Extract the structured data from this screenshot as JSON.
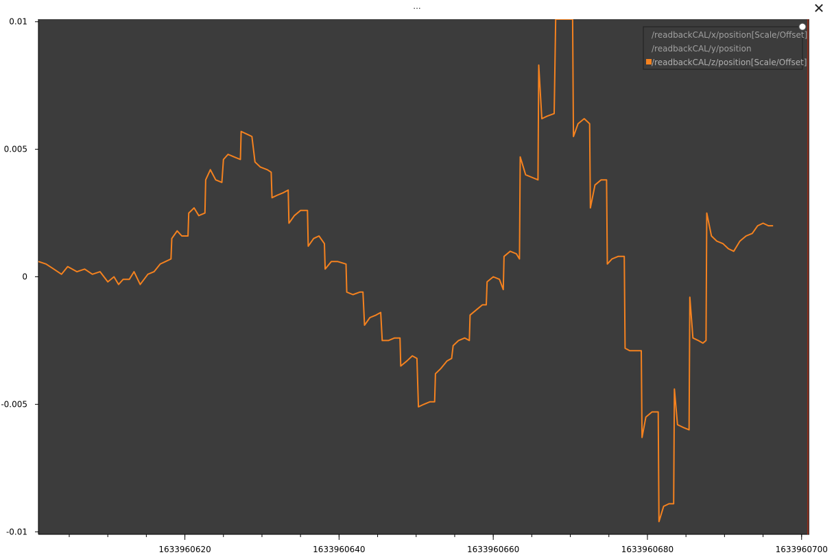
{
  "window": {
    "title": "...",
    "close_glyph": "✕"
  },
  "colors": {
    "canvas_bg": "#3c3c3c",
    "series_active": "#f5821f",
    "legend_inactive_text": "#a0a0a0",
    "legend_active_text": "#b0b0b0",
    "legend_bg": "#3c3c3c",
    "legend_border": "#1e1e1e",
    "marker_line": "#8b2d1c"
  },
  "chart_data": {
    "type": "line",
    "title": "",
    "xlabel": "",
    "ylabel": "",
    "xlim": [
      1633960601,
      1633960701
    ],
    "ylim": [
      -0.0101,
      0.0101
    ],
    "y_ticks": [
      {
        "value": 0.01,
        "label": "0.01"
      },
      {
        "value": 0.005,
        "label": "0.005"
      },
      {
        "value": 0,
        "label": "0"
      },
      {
        "value": -0.005,
        "label": "-0.005"
      },
      {
        "value": -0.01,
        "label": "-0.01"
      }
    ],
    "x_ticks": [
      {
        "value": 1633960620,
        "label": "1633960620"
      },
      {
        "value": 1633960640,
        "label": "1633960640"
      },
      {
        "value": 1633960660,
        "label": "1633960660"
      },
      {
        "value": 1633960680,
        "label": "1633960680"
      },
      {
        "value": 1633960700,
        "label": "1633960700"
      }
    ],
    "x_minor_step": 5,
    "grid": false,
    "legend_position": "top-right",
    "series": [
      {
        "name": "/readbackCAL/x/position[Scale/Offset]",
        "visible": false,
        "points": []
      },
      {
        "name": "/readbackCAL/y/position",
        "visible": false,
        "points": []
      },
      {
        "name": "/readbackCAL/z/position[Scale/Offset]",
        "visible": true,
        "points": [
          [
            1633960601.0,
            0.0006
          ],
          [
            1633960602.0,
            0.0005
          ],
          [
            1633960603.0,
            0.0003
          ],
          [
            1633960604.0,
            0.0001
          ],
          [
            1633960604.8,
            0.0004
          ],
          [
            1633960606.0,
            0.0002
          ],
          [
            1633960607.0,
            0.0003
          ],
          [
            1633960608.0,
            0.0001
          ],
          [
            1633960609.0,
            0.0002
          ],
          [
            1633960610.0,
            -0.0002
          ],
          [
            1633960610.8,
            0.0
          ],
          [
            1633960611.4,
            -0.0003
          ],
          [
            1633960612.0,
            -0.0001
          ],
          [
            1633960612.8,
            -0.0001
          ],
          [
            1633960613.4,
            0.0002
          ],
          [
            1633960614.2,
            -0.0003
          ],
          [
            1633960615.2,
            0.0001
          ],
          [
            1633960616.0,
            0.0002
          ],
          [
            1633960616.8,
            0.0005
          ],
          [
            1633960617.5,
            0.0006
          ],
          [
            1633960618.2,
            0.0007
          ],
          [
            1633960618.3,
            0.0015
          ],
          [
            1633960619.0,
            0.0018
          ],
          [
            1633960619.6,
            0.0016
          ],
          [
            1633960620.4,
            0.0016
          ],
          [
            1633960620.5,
            0.0025
          ],
          [
            1633960621.2,
            0.0027
          ],
          [
            1633960621.8,
            0.0024
          ],
          [
            1633960622.6,
            0.0025
          ],
          [
            1633960622.7,
            0.0038
          ],
          [
            1633960623.3,
            0.0042
          ],
          [
            1633960624.0,
            0.0038
          ],
          [
            1633960624.8,
            0.0037
          ],
          [
            1633960625.0,
            0.0046
          ],
          [
            1633960625.6,
            0.0048
          ],
          [
            1633960626.4,
            0.0047
          ],
          [
            1633960627.2,
            0.0046
          ],
          [
            1633960627.3,
            0.0057
          ],
          [
            1633960628.0,
            0.0056
          ],
          [
            1633960628.7,
            0.0055
          ],
          [
            1633960629.1,
            0.0045
          ],
          [
            1633960629.8,
            0.0043
          ],
          [
            1633960630.7,
            0.0042
          ],
          [
            1633960631.2,
            0.0041
          ],
          [
            1633960631.3,
            0.0031
          ],
          [
            1633960632.0,
            0.0032
          ],
          [
            1633960632.8,
            0.0033
          ],
          [
            1633960633.4,
            0.0034
          ],
          [
            1633960633.5,
            0.0021
          ],
          [
            1633960634.2,
            0.0024
          ],
          [
            1633960635.0,
            0.0026
          ],
          [
            1633960635.9,
            0.0026
          ],
          [
            1633960636.0,
            0.0012
          ],
          [
            1633960636.7,
            0.0015
          ],
          [
            1633960637.4,
            0.0016
          ],
          [
            1633960638.1,
            0.0013
          ],
          [
            1633960638.2,
            0.0003
          ],
          [
            1633960639.0,
            0.0006
          ],
          [
            1633960639.8,
            0.0006
          ],
          [
            1633960640.9,
            0.0005
          ],
          [
            1633960641.0,
            -0.0006
          ],
          [
            1633960641.8,
            -0.0007
          ],
          [
            1633960642.7,
            -0.0006
          ],
          [
            1633960643.1,
            -0.0006
          ],
          [
            1633960643.3,
            -0.0019
          ],
          [
            1633960644.0,
            -0.0016
          ],
          [
            1633960644.8,
            -0.0015
          ],
          [
            1633960645.4,
            -0.0014
          ],
          [
            1633960645.6,
            -0.0025
          ],
          [
            1633960646.4,
            -0.0025
          ],
          [
            1633960647.2,
            -0.0024
          ],
          [
            1633960647.9,
            -0.0024
          ],
          [
            1633960648.0,
            -0.0035
          ],
          [
            1633960648.8,
            -0.0033
          ],
          [
            1633960649.5,
            -0.0031
          ],
          [
            1633960650.1,
            -0.0032
          ],
          [
            1633960650.3,
            -0.0051
          ],
          [
            1633960651.0,
            -0.005
          ],
          [
            1633960651.8,
            -0.0049
          ],
          [
            1633960652.4,
            -0.0049
          ],
          [
            1633960652.5,
            -0.0038
          ],
          [
            1633960653.2,
            -0.0036
          ],
          [
            1633960654.0,
            -0.0033
          ],
          [
            1633960654.6,
            -0.0032
          ],
          [
            1633960654.8,
            -0.0027
          ],
          [
            1633960655.5,
            -0.0025
          ],
          [
            1633960656.3,
            -0.0024
          ],
          [
            1633960656.9,
            -0.0025
          ],
          [
            1633960657.0,
            -0.0015
          ],
          [
            1633960657.8,
            -0.0013
          ],
          [
            1633960658.6,
            -0.0011
          ],
          [
            1633960659.1,
            -0.0011
          ],
          [
            1633960659.2,
            -0.0002
          ],
          [
            1633960660.0,
            0.0
          ],
          [
            1633960660.8,
            -0.0001
          ],
          [
            1633960661.3,
            -0.0005
          ],
          [
            1633960661.4,
            0.0008
          ],
          [
            1633960662.2,
            0.001
          ],
          [
            1633960663.0,
            0.0009
          ],
          [
            1633960663.4,
            0.0007
          ],
          [
            1633960663.5,
            0.0047
          ],
          [
            1633960664.2,
            0.004
          ],
          [
            1633960665.0,
            0.0039
          ],
          [
            1633960665.8,
            0.0038
          ],
          [
            1633960665.9,
            0.0083
          ],
          [
            1633960666.3,
            0.0062
          ],
          [
            1633960667.0,
            0.0063
          ],
          [
            1633960667.9,
            0.0064
          ],
          [
            1633960668.1,
            0.0101
          ],
          [
            1633960668.3,
            0.0101
          ],
          [
            1633960670.3,
            0.0101
          ],
          [
            1633960670.4,
            0.0055
          ],
          [
            1633960671.0,
            0.006
          ],
          [
            1633960671.8,
            0.0062
          ],
          [
            1633960672.5,
            0.006
          ],
          [
            1633960672.6,
            0.0027
          ],
          [
            1633960673.2,
            0.0036
          ],
          [
            1633960674.0,
            0.0038
          ],
          [
            1633960674.7,
            0.0038
          ],
          [
            1633960674.8,
            0.0005
          ],
          [
            1633960675.4,
            0.0007
          ],
          [
            1633960676.2,
            0.0008
          ],
          [
            1633960677.0,
            0.0008
          ],
          [
            1633960677.1,
            -0.0028
          ],
          [
            1633960677.7,
            -0.0029
          ],
          [
            1633960678.5,
            -0.0029
          ],
          [
            1633960679.2,
            -0.0029
          ],
          [
            1633960679.3,
            -0.0063
          ],
          [
            1633960679.8,
            -0.0055
          ],
          [
            1633960680.6,
            -0.0053
          ],
          [
            1633960681.4,
            -0.0053
          ],
          [
            1633960681.5,
            -0.0096
          ],
          [
            1633960682.1,
            -0.009
          ],
          [
            1633960682.8,
            -0.0089
          ],
          [
            1633960683.4,
            -0.0089
          ],
          [
            1633960683.5,
            -0.0044
          ],
          [
            1633960683.9,
            -0.0058
          ],
          [
            1633960684.6,
            -0.0059
          ],
          [
            1633960685.4,
            -0.006
          ],
          [
            1633960685.5,
            -0.0008
          ],
          [
            1633960685.9,
            -0.0024
          ],
          [
            1633960686.6,
            -0.0025
          ],
          [
            1633960687.2,
            -0.0026
          ],
          [
            1633960687.6,
            -0.0025
          ],
          [
            1633960687.7,
            0.0025
          ],
          [
            1633960688.3,
            0.0016
          ],
          [
            1633960689.0,
            0.0014
          ],
          [
            1633960689.8,
            0.0013
          ],
          [
            1633960690.5,
            0.0011
          ],
          [
            1633960691.2,
            0.001
          ],
          [
            1633960692.0,
            0.0014
          ],
          [
            1633960692.8,
            0.0016
          ],
          [
            1633960693.6,
            0.0017
          ],
          [
            1633960694.3,
            0.002
          ],
          [
            1633960695.0,
            0.0021
          ],
          [
            1633960695.7,
            0.002
          ],
          [
            1633960696.3,
            0.002
          ]
        ]
      }
    ]
  }
}
